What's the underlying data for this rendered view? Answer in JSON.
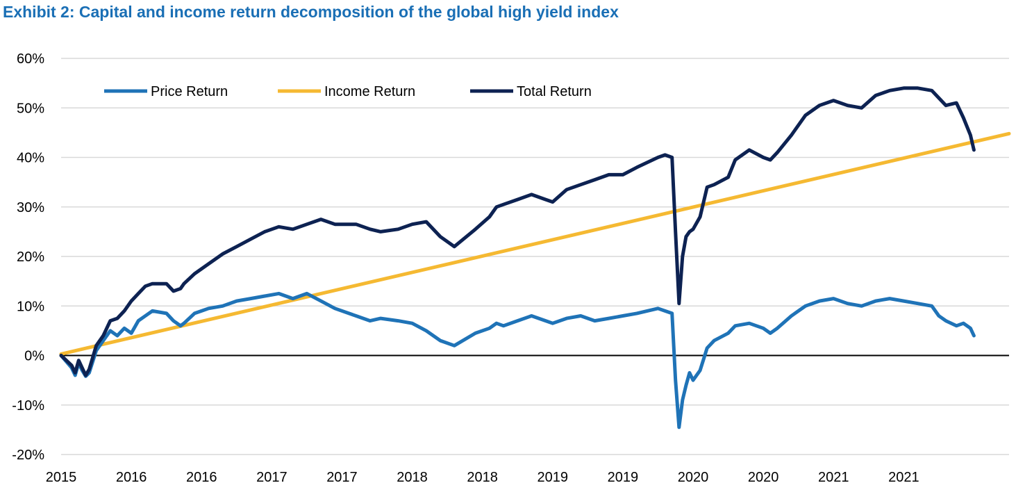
{
  "chart_data": {
    "type": "line",
    "title": "Exhibit 2: Capital and income return decomposition of the global high yield index",
    "xlabel": "",
    "ylabel": "",
    "ylim": [
      -20,
      60
    ],
    "yticks": [
      60,
      50,
      40,
      30,
      20,
      10,
      0,
      -10,
      -20
    ],
    "ytick_labels": [
      "60%",
      "50%",
      "40%",
      "30%",
      "20%",
      "10%",
      "0%",
      "-10%",
      "-20%"
    ],
    "xticks": [
      0,
      1,
      2,
      3,
      4,
      5,
      6,
      7,
      8,
      9,
      10,
      11,
      12,
      13
    ],
    "xtick_labels": [
      "2015",
      "2016",
      "2016",
      "2017",
      "2017",
      "2018",
      "2018",
      "2019",
      "2019",
      "2020",
      "2020",
      "2021",
      "2021",
      ""
    ],
    "grid": true,
    "legend_position": "top-left",
    "colors": {
      "title": "#1a6fb5",
      "price": "#1f73b7",
      "income": "#f5b932",
      "total": "#0d2252",
      "grid": "#d9d9d9",
      "zero": "#000000"
    },
    "series": [
      {
        "name": "Price Return",
        "key": "price",
        "x": [
          0,
          0.15,
          0.2,
          0.25,
          0.3,
          0.35,
          0.4,
          0.5,
          0.6,
          0.7,
          0.8,
          0.9,
          1.0,
          1.1,
          1.2,
          1.3,
          1.5,
          1.6,
          1.7,
          1.75,
          1.9,
          2.0,
          2.1,
          2.3,
          2.5,
          2.7,
          2.9,
          3.1,
          3.3,
          3.5,
          3.7,
          3.9,
          4.2,
          4.4,
          4.55,
          4.8,
          5.0,
          5.2,
          5.4,
          5.6,
          5.9,
          6.1,
          6.2,
          6.3,
          6.5,
          6.7,
          6.9,
          7.0,
          7.2,
          7.4,
          7.6,
          7.8,
          8.0,
          8.2,
          8.5,
          8.6,
          8.7,
          8.75,
          8.8,
          8.85,
          8.9,
          8.95,
          9.0,
          9.1,
          9.2,
          9.3,
          9.5,
          9.6,
          9.8,
          10.0,
          10.1,
          10.2,
          10.4,
          10.6,
          10.8,
          11.0,
          11.2,
          11.4,
          11.6,
          11.8,
          12.0,
          12.2,
          12.4,
          12.5,
          12.6,
          12.75,
          12.85,
          12.95,
          13.0
        ],
        "values": [
          0,
          -2.5,
          -4.0,
          -1.5,
          -3.0,
          -4.2,
          -3.5,
          1.0,
          3.0,
          5.0,
          4.0,
          5.5,
          4.5,
          7.0,
          8.0,
          9.0,
          8.5,
          7.0,
          6.0,
          6.5,
          8.5,
          9.0,
          9.5,
          10.0,
          11.0,
          11.5,
          12.0,
          12.5,
          11.5,
          12.5,
          11.0,
          9.5,
          8.0,
          7.0,
          7.5,
          7.0,
          6.5,
          5.0,
          3.0,
          2.0,
          4.5,
          5.5,
          6.5,
          6.0,
          7.0,
          8.0,
          7.0,
          6.5,
          7.5,
          8.0,
          7.0,
          7.5,
          8.0,
          8.5,
          9.5,
          9.0,
          8.5,
          -5.0,
          -14.5,
          -9.0,
          -6.0,
          -3.5,
          -5.0,
          -3.0,
          1.5,
          3.0,
          4.5,
          6.0,
          6.5,
          5.5,
          4.5,
          5.5,
          8.0,
          10.0,
          11.0,
          11.5,
          10.5,
          10.0,
          11.0,
          11.5,
          11.0,
          10.5,
          10.0,
          8.0,
          7.0,
          6.0,
          6.5,
          5.5,
          4.0
        ]
      },
      {
        "name": "Income Return",
        "key": "income",
        "x": [
          0,
          13.5
        ],
        "values": [
          0.3,
          44.8
        ]
      },
      {
        "name": "Total Return",
        "key": "total",
        "x": [
          0,
          0.15,
          0.2,
          0.25,
          0.3,
          0.35,
          0.4,
          0.5,
          0.6,
          0.7,
          0.8,
          0.9,
          1.0,
          1.1,
          1.2,
          1.3,
          1.5,
          1.6,
          1.7,
          1.75,
          1.9,
          2.0,
          2.1,
          2.3,
          2.5,
          2.7,
          2.9,
          3.1,
          3.3,
          3.5,
          3.7,
          3.9,
          4.2,
          4.4,
          4.55,
          4.8,
          5.0,
          5.2,
          5.4,
          5.6,
          5.9,
          6.1,
          6.2,
          6.3,
          6.5,
          6.7,
          6.9,
          7.0,
          7.2,
          7.4,
          7.6,
          7.8,
          8.0,
          8.2,
          8.5,
          8.6,
          8.7,
          8.75,
          8.8,
          8.85,
          8.9,
          8.95,
          9.0,
          9.1,
          9.2,
          9.3,
          9.5,
          9.6,
          9.8,
          10.0,
          10.1,
          10.2,
          10.4,
          10.6,
          10.8,
          11.0,
          11.2,
          11.4,
          11.6,
          11.8,
          12.0,
          12.2,
          12.4,
          12.5,
          12.6,
          12.75,
          12.85,
          12.95,
          13.0
        ],
        "values": [
          0,
          -2.0,
          -3.5,
          -1.0,
          -2.5,
          -4.0,
          -2.8,
          2.0,
          4.0,
          7.0,
          7.5,
          9.0,
          11.0,
          12.5,
          14.0,
          14.5,
          14.5,
          13.0,
          13.5,
          14.5,
          16.5,
          17.5,
          18.5,
          20.5,
          22.0,
          23.5,
          25.0,
          26.0,
          25.5,
          26.5,
          27.5,
          26.5,
          26.5,
          25.5,
          25.0,
          25.5,
          26.5,
          27.0,
          24.0,
          22.0,
          25.5,
          28.0,
          30.0,
          30.5,
          31.5,
          32.5,
          31.5,
          31.0,
          33.5,
          34.5,
          35.5,
          36.5,
          36.5,
          38.0,
          40.0,
          40.5,
          40.0,
          25.0,
          10.5,
          20.0,
          24.0,
          25.0,
          25.5,
          28.0,
          34.0,
          34.5,
          36.0,
          39.5,
          41.5,
          40.0,
          39.5,
          41.0,
          44.5,
          48.5,
          50.5,
          51.5,
          50.5,
          50.0,
          52.5,
          53.5,
          54.0,
          54.0,
          53.5,
          52.0,
          50.5,
          51.0,
          48.0,
          44.5,
          41.5
        ]
      }
    ]
  }
}
